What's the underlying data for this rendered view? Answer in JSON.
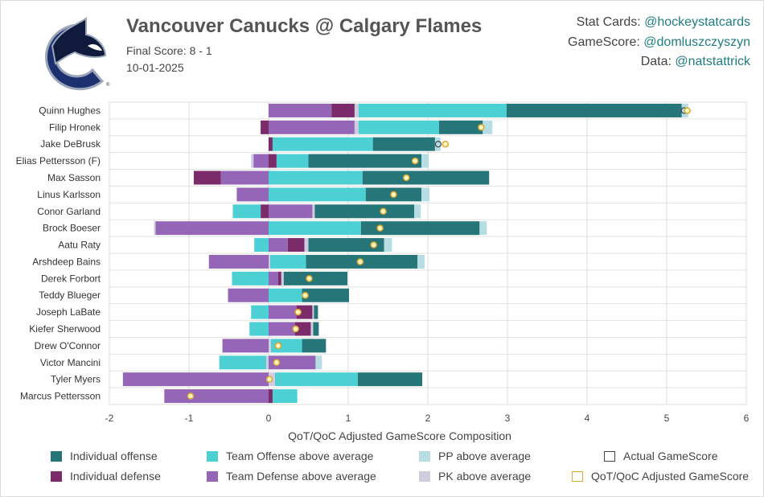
{
  "header": {
    "title": "Vancouver Canucks @ Calgary Flames",
    "final_score": "Final Score: 8 - 1",
    "date": "10-01-2025",
    "credits": [
      {
        "label": "Stat Cards: ",
        "handle": "@hockeystatcards"
      },
      {
        "label": "GameScore: ",
        "handle": "@domluszczyszyn"
      },
      {
        "label": "Data: ",
        "handle": "@natstattrick"
      }
    ],
    "logo": "Vancouver Canucks logo"
  },
  "colors": {
    "ind_off": "#267679",
    "team_off": "#4dd0d4",
    "pp": "#b5dde3",
    "ind_def": "#7b2a6a",
    "team_def": "#9566b8",
    "pk": "#cfcce0",
    "actual": "#444444",
    "adjusted": "#e0a82e",
    "adjusted_fill": "#fff6c4"
  },
  "chart_data": {
    "type": "bar",
    "orientation": "horizontal-stacked",
    "xlabel": "QoT/QoC Adjusted GameScore Composition",
    "xlim": [
      -2,
      6
    ],
    "xticks": [
      "-2",
      "-1",
      "0",
      "1",
      "2",
      "3",
      "4",
      "5",
      "6"
    ],
    "grid": true,
    "legend_placement": "bottom",
    "legend": [
      {
        "key": "ind_off",
        "label": "Individual offense"
      },
      {
        "key": "team_off",
        "label": "Team Offense above average"
      },
      {
        "key": "pp",
        "label": "PP above average"
      },
      {
        "key": "actual",
        "label": "Actual GameScore"
      },
      {
        "key": "ind_def",
        "label": "Individual defense"
      },
      {
        "key": "team_def",
        "label": "Team Defense above average"
      },
      {
        "key": "pk",
        "label": "PK above average"
      },
      {
        "key": "adjusted",
        "label": "QoT/QoC Adjusted GameScore"
      }
    ],
    "players": [
      {
        "name": "Quinn Hughes",
        "team_def": 0.79,
        "ind_def": 0.29,
        "pk": 0.05,
        "team_off": 1.86,
        "ind_off": 2.2,
        "pp": 0.08,
        "actual": 5.22,
        "adjusted": 5.26
      },
      {
        "name": "Filip Hronek",
        "team_def": 1.08,
        "ind_def": -0.1,
        "pk": 0.05,
        "team_off": 1.01,
        "ind_off": 0.55,
        "pp": 0.12,
        "actual": null,
        "adjusted": 2.67
      },
      {
        "name": "Jake DeBrusk",
        "team_def": 0,
        "ind_def": 0.05,
        "pk": 0,
        "team_off": 1.26,
        "ind_off": 0.78,
        "pp": 0.07,
        "actual": 2.13,
        "adjusted": 2.22
      },
      {
        "name": "Elias Pettersson (F)",
        "team_def": -0.19,
        "ind_def": 0.1,
        "pk": -0.03,
        "team_off": 0.4,
        "ind_off": 1.42,
        "pp": 0.09,
        "actual": null,
        "adjusted": 1.84
      },
      {
        "name": "Max Sasson",
        "team_def": -0.6,
        "ind_def": -0.34,
        "pk": 0,
        "team_off": 1.18,
        "ind_off": 1.59,
        "pp": 0,
        "actual": null,
        "adjusted": 1.73
      },
      {
        "name": "Linus Karlsson",
        "team_def": -0.4,
        "ind_def": 0,
        "pk": 0,
        "team_off": 1.22,
        "ind_off": 0.7,
        "pp": 0.1,
        "actual": null,
        "adjusted": 1.57
      },
      {
        "name": "Conor Garland",
        "team_def": 0.55,
        "ind_def": -0.1,
        "pk": 0.03,
        "team_off": -0.35,
        "ind_off": 1.25,
        "pp": 0.08,
        "actual": null,
        "adjusted": 1.44
      },
      {
        "name": "Brock Boeser",
        "team_def": -1.42,
        "ind_def": 0,
        "pk": -0.02,
        "team_off": 1.16,
        "ind_off": 1.49,
        "pp": 0.09,
        "actual": null,
        "adjusted": 1.4
      },
      {
        "name": "Aatu Raty",
        "team_def": 0.24,
        "ind_def": 0.21,
        "pk": 0.05,
        "team_off": -0.18,
        "ind_off": 0.95,
        "pp": 0.1,
        "actual": null,
        "adjusted": 1.32
      },
      {
        "name": "Arshdeep Bains",
        "team_def": -0.75,
        "ind_def": 0,
        "pk": 0.02,
        "team_off": 0.45,
        "ind_off": 1.4,
        "pp": 0.09,
        "actual": null,
        "adjusted": 1.15
      },
      {
        "name": "Derek Forbort",
        "team_def": 0.12,
        "ind_def": 0.04,
        "pk": 0.03,
        "team_off": -0.46,
        "ind_off": 0.8,
        "pp": 0,
        "actual": null,
        "adjusted": 0.51
      },
      {
        "name": "Teddy Blueger",
        "team_def": -0.51,
        "ind_def": 0,
        "pk": 0,
        "team_off": 0.42,
        "ind_off": 0.59,
        "pp": 0,
        "actual": null,
        "adjusted": 0.46
      },
      {
        "name": "Joseph LaBate",
        "team_def": 0.35,
        "ind_def": 0.2,
        "pk": 0.02,
        "team_off": -0.22,
        "ind_off": 0.05,
        "pp": 0,
        "actual": null,
        "adjusted": 0.37
      },
      {
        "name": "Kiefer Sherwood",
        "team_def": 0.33,
        "ind_def": 0.2,
        "pk": 0.03,
        "team_off": -0.24,
        "ind_off": 0.07,
        "pp": 0,
        "actual": null,
        "adjusted": 0.34
      },
      {
        "name": "Drew O'Connor",
        "team_def": -0.58,
        "ind_def": 0,
        "pk": 0.03,
        "team_off": 0.39,
        "ind_off": 0.3,
        "pp": 0,
        "actual": null,
        "adjusted": 0.12
      },
      {
        "name": "Victor Mancini",
        "team_def": 0.59,
        "ind_def": 0,
        "pk": -0.03,
        "team_off": -0.59,
        "ind_off": 0,
        "pp": 0.08,
        "actual": null,
        "adjusted": 0.1
      },
      {
        "name": "Tyler Myers",
        "team_def": -1.83,
        "ind_def": 0,
        "pk": 0.08,
        "team_off": 1.04,
        "ind_off": 0.81,
        "pp": 0,
        "actual": null,
        "adjusted": 0.01
      },
      {
        "name": "Marcus Pettersson",
        "team_def": -1.31,
        "ind_def": 0.05,
        "pk": 0,
        "team_off": 0.31,
        "ind_off": 0,
        "pp": 0,
        "actual": null,
        "adjusted": -0.98
      }
    ]
  }
}
